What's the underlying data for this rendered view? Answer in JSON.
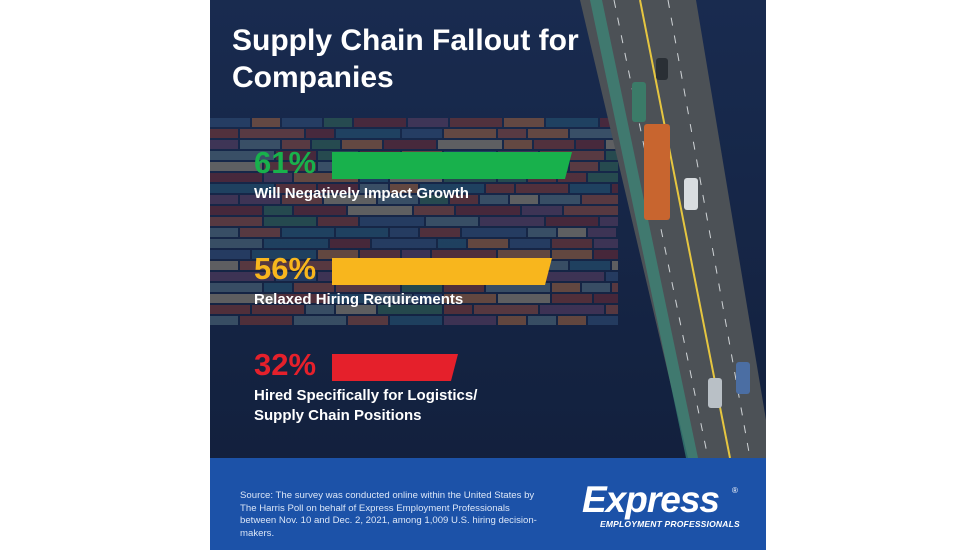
{
  "title": "Supply Chain Fallout for Companies",
  "chart_data": {
    "type": "bar",
    "title": "Supply Chain Fallout for Companies",
    "orientation": "horizontal",
    "unit": "%",
    "categories": [
      "Will Negatively Impact Growth",
      "Relaxed Hiring Requirements",
      "Hired Specifically for Logistics/ Supply Chain Positions"
    ],
    "values": [
      61,
      56,
      32
    ],
    "value_labels": [
      "61%",
      "56%",
      "32%"
    ],
    "colors": [
      "#18b14c",
      "#f8b61d",
      "#e5202b"
    ]
  },
  "footer": {
    "source": "Source: The survey was conducted online within the United States by The Harris Poll on behalf of Express Employment Professionals between Nov. 10 and Dec. 2, 2021, among 1,009 U.S. hiring decision-makers.",
    "logo_word": "Express",
    "logo_reg": "®",
    "logo_sub": "EMPLOYMENT PROFESSIONALS"
  },
  "icons": [
    "container-ship-photo",
    "bridge-road-photo"
  ]
}
